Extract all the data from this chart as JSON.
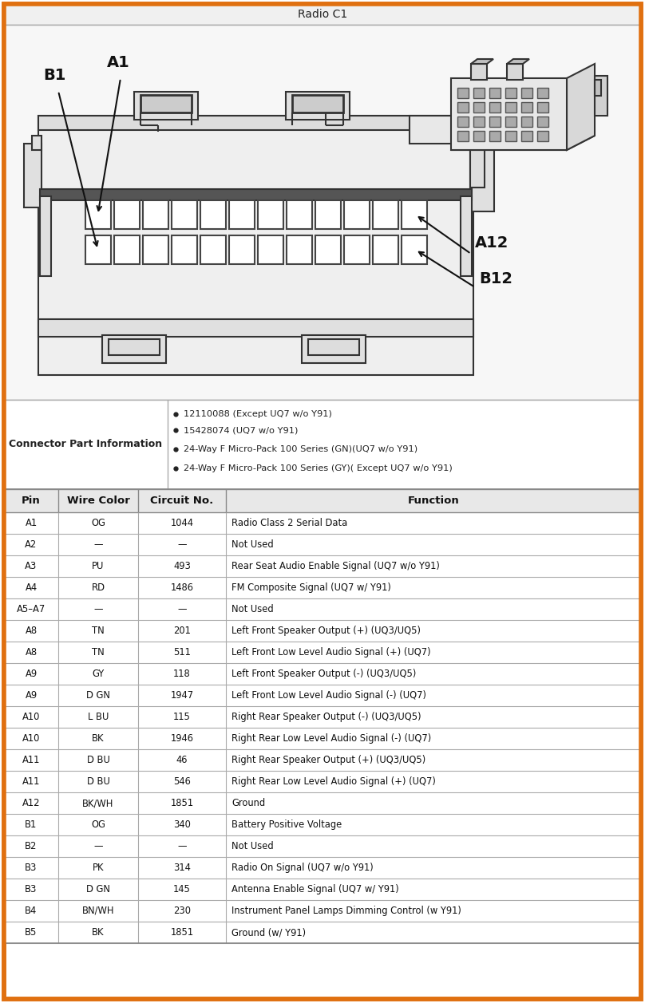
{
  "title": "Radio C1",
  "border_color": "#E07010",
  "bg_color": "#FFFFFF",
  "connector_info_label": "Connector Part Information",
  "connector_info_bullets": [
    "12110088 (Except UQ7 w/o Y91)",
    "15428074 (UQ7 w/o Y91)",
    "24-Way F Micro-Pack 100 Series (GN)(UQ7 w/o Y91)",
    "24-Way F Micro-Pack 100 Series (GY)( Except UQ7 w/o Y91)"
  ],
  "table_headers": [
    "Pin",
    "Wire Color",
    "Circuit No.",
    "Function"
  ],
  "table_rows": [
    [
      "A1",
      "OG",
      "1044",
      "Radio Class 2 Serial Data"
    ],
    [
      "A2",
      "—",
      "—",
      "Not Used"
    ],
    [
      "A3",
      "PU",
      "493",
      "Rear Seat Audio Enable Signal (UQ7 w/o Y91)"
    ],
    [
      "A4",
      "RD",
      "1486",
      "FM Composite Signal (UQ7 w/ Y91)"
    ],
    [
      "A5–A7",
      "—",
      "—",
      "Not Used"
    ],
    [
      "A8",
      "TN",
      "201",
      "Left Front Speaker Output (+) (UQ3/UQ5)"
    ],
    [
      "A8",
      "TN",
      "511",
      "Left Front Low Level Audio Signal (+) (UQ7)"
    ],
    [
      "A9",
      "GY",
      "118",
      "Left Front Speaker Output (-) (UQ3/UQ5)"
    ],
    [
      "A9",
      "D GN",
      "1947",
      "Left Front Low Level Audio Signal (-) (UQ7)"
    ],
    [
      "A10",
      "L BU",
      "115",
      "Right Rear Speaker Output (-) (UQ3/UQ5)"
    ],
    [
      "A10",
      "BK",
      "1946",
      "Right Rear Low Level Audio Signal (-) (UQ7)"
    ],
    [
      "A11",
      "D BU",
      "46",
      "Right Rear Speaker Output (+) (UQ3/UQ5)"
    ],
    [
      "A11",
      "D BU",
      "546",
      "Right Rear Low Level Audio Signal (+) (UQ7)"
    ],
    [
      "A12",
      "BK/WH",
      "1851",
      "Ground"
    ],
    [
      "B1",
      "OG",
      "340",
      "Battery Positive Voltage"
    ],
    [
      "B2",
      "—",
      "—",
      "Not Used"
    ],
    [
      "B3",
      "PK",
      "314",
      "Radio On Signal (UQ7 w/o Y91)"
    ],
    [
      "B3",
      "D GN",
      "145",
      "Antenna Enable Signal (UQ7 w/ Y91)"
    ],
    [
      "B4",
      "BN/WH",
      "230",
      "Instrument Panel Lamps Dimming Control (w Y91)"
    ],
    [
      "B5",
      "BK",
      "1851",
      "Ground (w/ Y91)"
    ]
  ],
  "label_B1": "B1",
  "label_A1": "A1",
  "label_A12": "A12",
  "label_B12": "B12",
  "line_color": "#333333",
  "fill_light": "#E8E8E8",
  "fill_white": "#FFFFFF",
  "fill_dark": "#888888"
}
